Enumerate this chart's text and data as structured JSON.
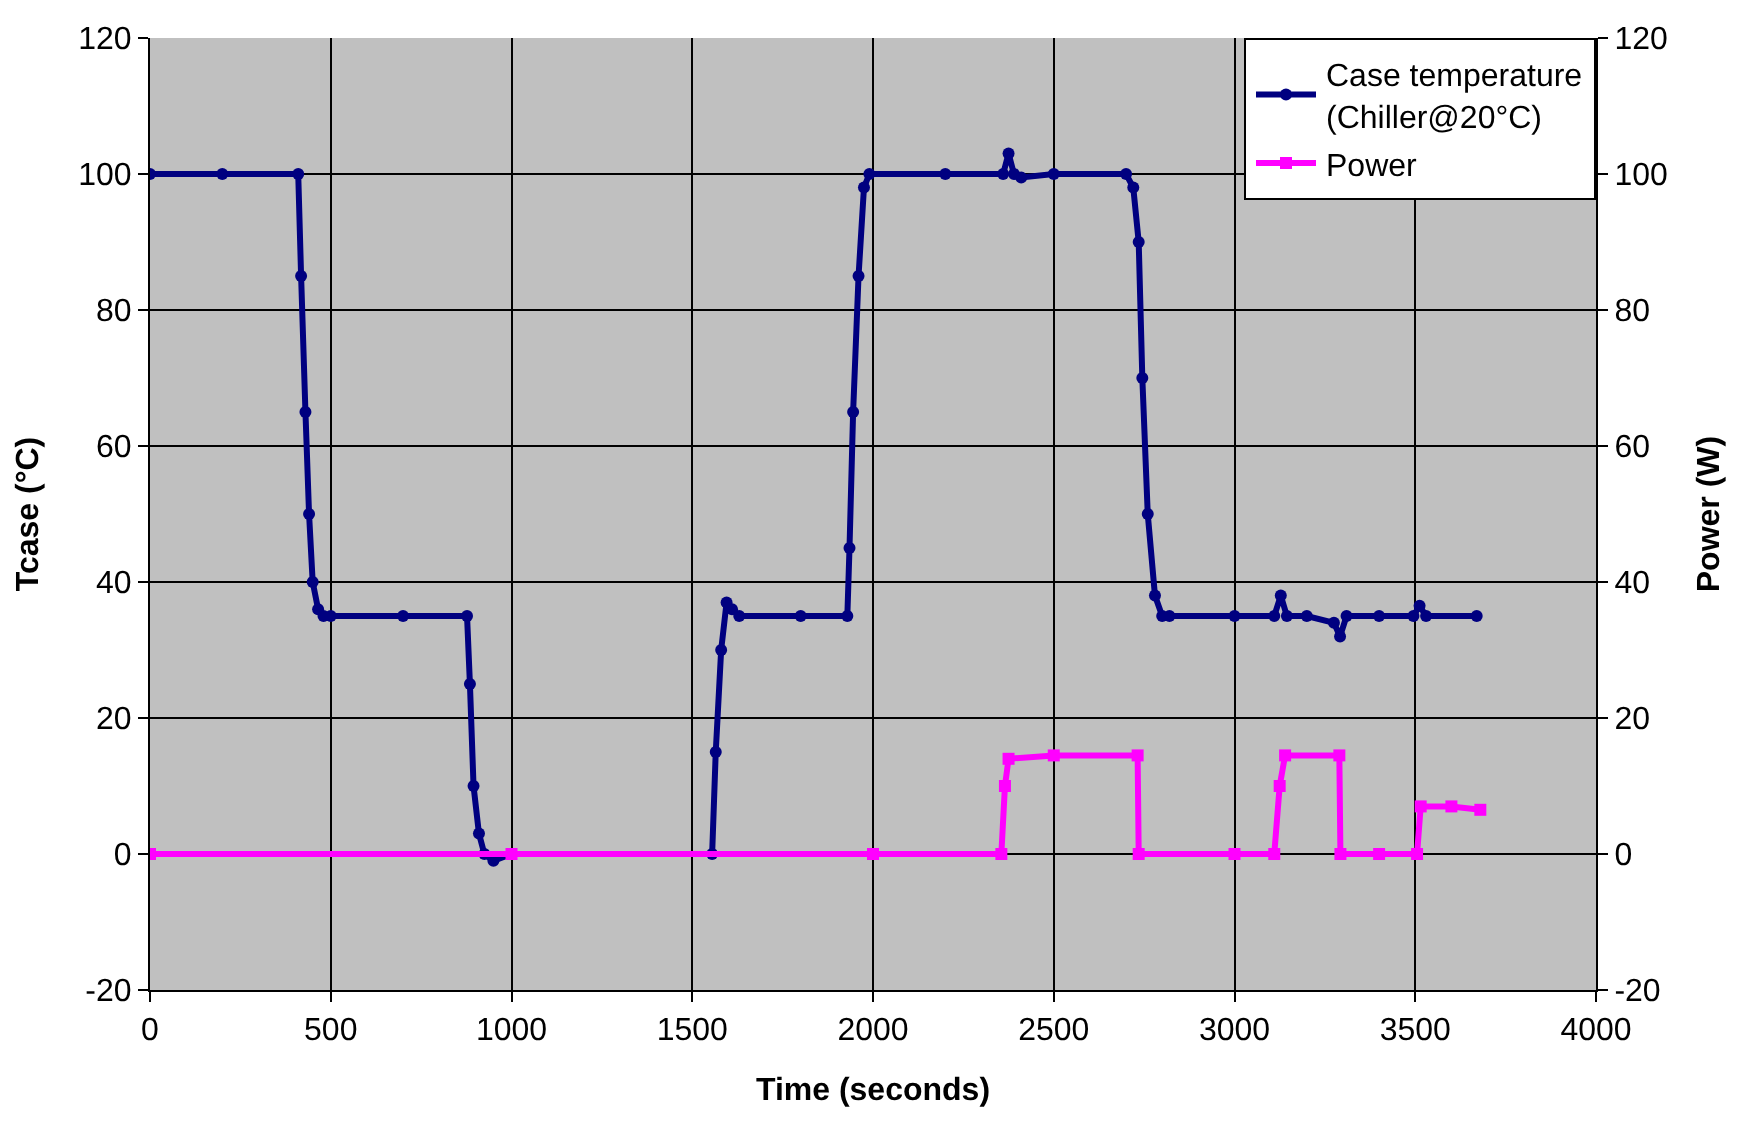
{
  "chart_data": {
    "type": "line",
    "xlabel": "Time (seconds)",
    "ylabel": "Tcase (°C)",
    "y2label": "Power (W)",
    "xlim": [
      0,
      4000
    ],
    "xticks": [
      0,
      500,
      1000,
      1500,
      2000,
      2500,
      3000,
      3500,
      4000
    ],
    "ylim": [
      -20,
      120
    ],
    "yticks": [
      -20,
      0,
      20,
      40,
      60,
      80,
      100,
      120
    ],
    "y2lim": [
      -20,
      120
    ],
    "y2ticks": [
      -20,
      0,
      20,
      40,
      60,
      80,
      100,
      120
    ],
    "grid": true,
    "legend": "top right",
    "series": [
      {
        "name": "Case temperature\n(Chiller@20°C)",
        "color": "#000080",
        "marker": "circle",
        "x": [
          0,
          200,
          410,
          418,
          430,
          440,
          450,
          465,
          480,
          500,
          700,
          877,
          885,
          895,
          910,
          925,
          950,
          1000,
          1555,
          1565,
          1580,
          1595,
          1610,
          1630,
          1800,
          1929,
          1935,
          1945,
          1960,
          1975,
          1990,
          2200,
          2360,
          2375,
          2390,
          2410,
          2500,
          2700,
          2720,
          2735,
          2745,
          2760,
          2780,
          2800,
          2820,
          3000,
          3110,
          3128,
          3145,
          3200,
          3275,
          3292,
          3310,
          3400,
          3495,
          3512,
          3530,
          3670
        ],
        "values": [
          100,
          100,
          100,
          85,
          65,
          50,
          40,
          36,
          35,
          35,
          35,
          35,
          25,
          10,
          3,
          0,
          -1,
          0,
          0,
          15,
          30,
          37,
          36,
          35,
          35,
          35,
          45,
          65,
          85,
          98,
          100,
          100,
          100,
          103,
          100,
          99.5,
          100,
          100,
          98,
          90,
          70,
          50,
          38,
          35,
          35,
          35,
          35,
          38,
          35,
          35,
          34,
          32,
          35,
          35,
          35,
          36.5,
          35,
          35
        ]
      },
      {
        "name": "Power",
        "color": "#ff00ff",
        "marker": "square",
        "axis": "y2",
        "x": [
          0,
          1000,
          2000,
          2355,
          2365,
          2375,
          2500,
          2732,
          2735,
          3000,
          3110,
          3125,
          3140,
          3290,
          3293,
          3400,
          3505,
          3515,
          3600,
          3680
        ],
        "values": [
          0,
          0,
          0,
          0,
          10,
          14,
          14.5,
          14.5,
          0,
          0,
          0,
          10,
          14.5,
          14.5,
          0,
          0,
          0,
          7,
          7,
          6.5
        ]
      }
    ]
  }
}
